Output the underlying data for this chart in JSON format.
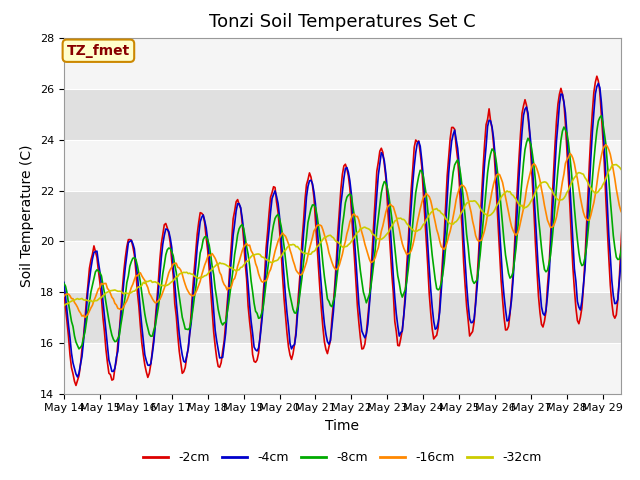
{
  "title": "Tonzi Soil Temperatures Set C",
  "xlabel": "Time",
  "ylabel": "Soil Temperature (C)",
  "ylim": [
    14,
    28
  ],
  "yticks": [
    14,
    16,
    18,
    20,
    22,
    24,
    26,
    28
  ],
  "background_color": "#ffffff",
  "plot_bg_light": "#e8e8e8",
  "plot_bg_dark": "#d0d0d0",
  "series_colors": [
    "#dd0000",
    "#0000cc",
    "#00aa00",
    "#ff8800",
    "#cccc00"
  ],
  "series_labels": [
    "-2cm",
    "-4cm",
    "-8cm",
    "-16cm",
    "-32cm"
  ],
  "annotation_text": "TZ_fmet",
  "annotation_bg": "#ffffcc",
  "annotation_border": "#cc8800",
  "annotation_text_color": "#880000",
  "x_tick_labels": [
    "May 14",
    "May 15",
    "May 16",
    "May 17",
    "May 18",
    "May 19",
    "May 20",
    "May 21",
    "May 22",
    "May 23",
    "May 24",
    "May 25",
    "May 26",
    "May 27",
    "May 28",
    "May 29"
  ],
  "title_fontsize": 13,
  "axis_label_fontsize": 10,
  "tick_fontsize": 8
}
